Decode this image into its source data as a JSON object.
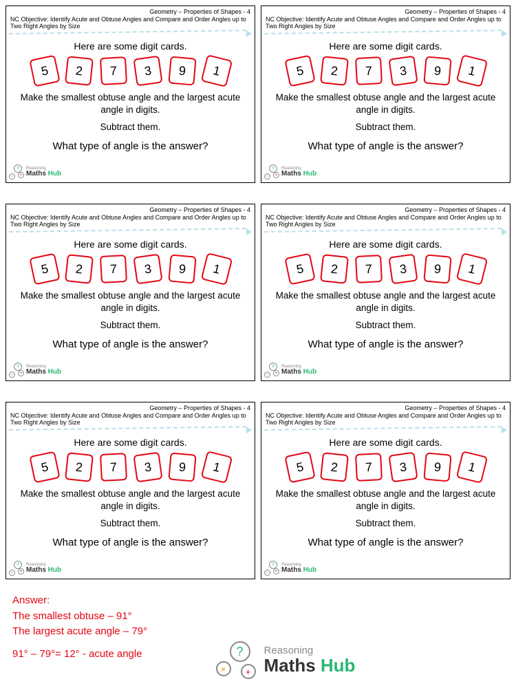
{
  "card": {
    "header": "Geometry – Properties of Shapes - 4",
    "objective": "NC Objective: Identify Acute and Obtuse Angles and Compare and Order Angles up to Two Right Angles by Size",
    "intro": "Here are some digit cards.",
    "digits": [
      "5",
      "2",
      "7",
      "3",
      "9",
      "1"
    ],
    "line1": "Make the smallest obtuse angle and the largest acute angle in digits.",
    "line2": "Subtract them.",
    "question": "What type of angle is the answer?",
    "digit_border_color": "#e30613"
  },
  "logo": {
    "top": "Reasoning",
    "main": "Maths ",
    "hub": "Hub",
    "q": "?",
    "x": "×",
    "p": "+"
  },
  "answer": {
    "title": "Answer:",
    "l1": "The smallest obtuse – 91°",
    "l2": "The largest acute angle – 79°",
    "l3": "91° – 79°= 12°  - acute angle"
  }
}
